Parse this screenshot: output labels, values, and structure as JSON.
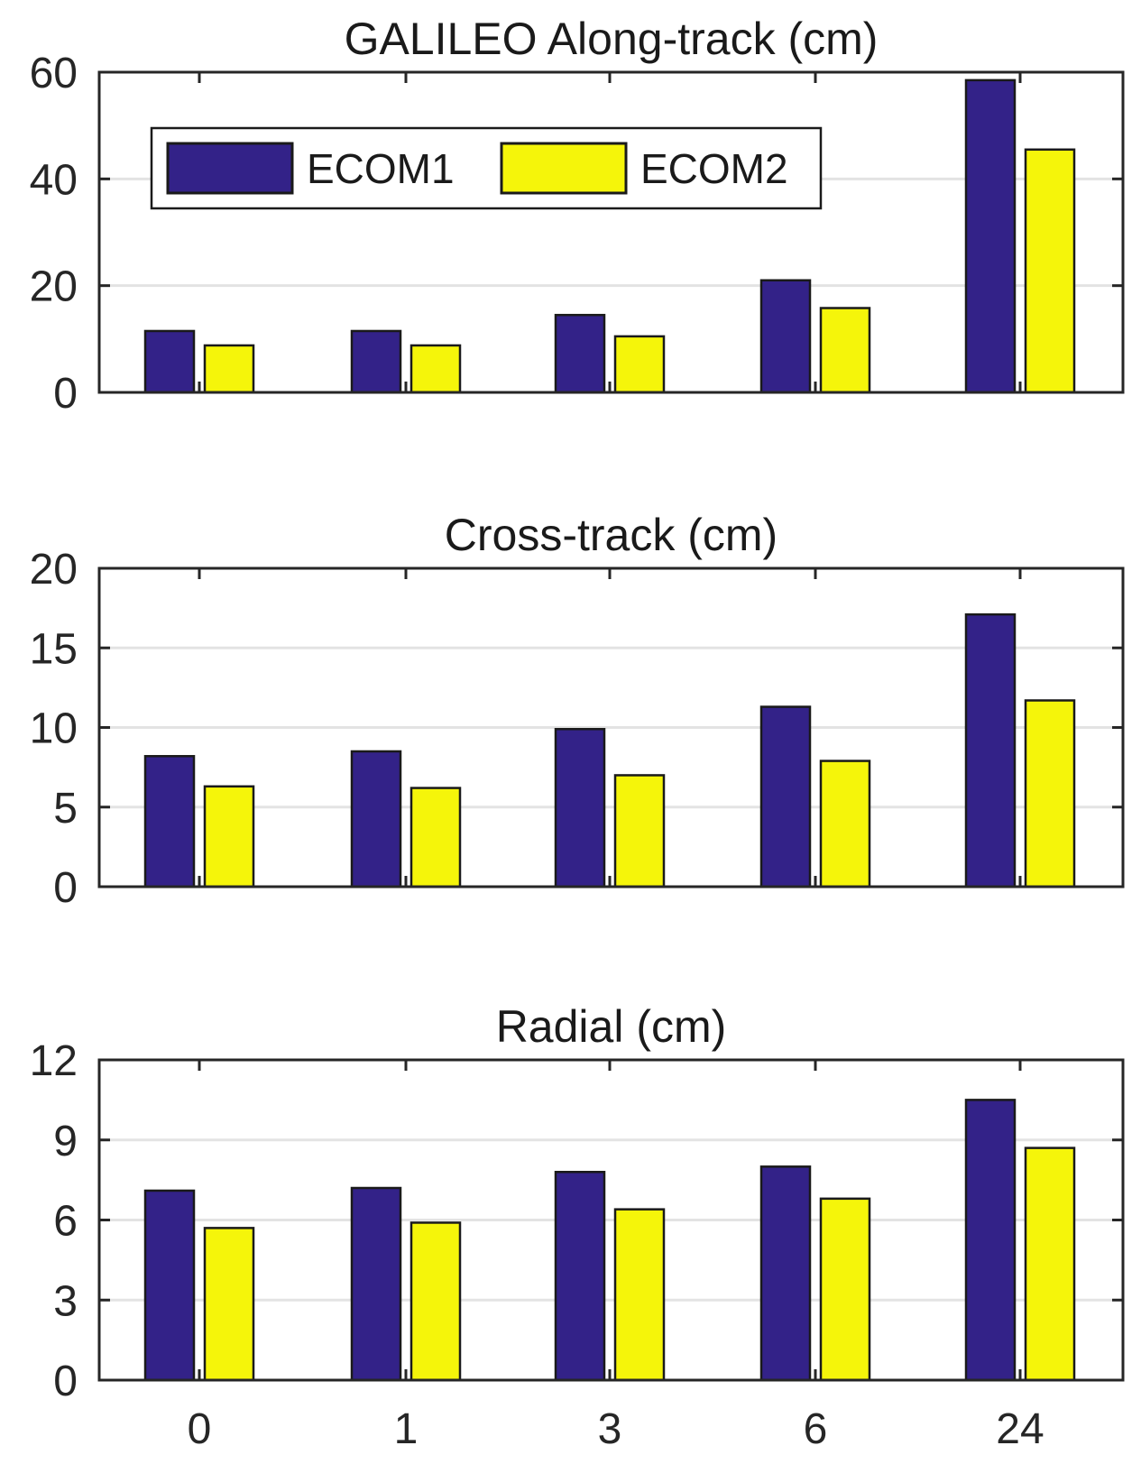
{
  "colors": {
    "ECOM1": "#332288",
    "ECOM2": "#f5f50a",
    "grid": "#e3e3e3",
    "axis": "#262626"
  },
  "chart_data": [
    {
      "type": "bar",
      "title": "GALILEO Along-track (cm)",
      "xlabel": "",
      "ylabel": "",
      "categories": [
        "0",
        "1",
        "3",
        "6",
        "24"
      ],
      "series": [
        {
          "name": "ECOM1",
          "values": [
            11.5,
            11.5,
            14.5,
            21,
            58.5
          ]
        },
        {
          "name": "ECOM2",
          "values": [
            8.8,
            8.8,
            10.5,
            15.8,
            45.5
          ]
        }
      ],
      "ylim": [
        0,
        60
      ],
      "yticks": [
        0,
        20,
        40,
        60
      ],
      "grid": true,
      "legend": {
        "position": "top-left",
        "entries": [
          "ECOM1",
          "ECOM2"
        ]
      },
      "show_xticklabels": false
    },
    {
      "type": "bar",
      "title": "Cross-track (cm)",
      "xlabel": "",
      "ylabel": "",
      "categories": [
        "0",
        "1",
        "3",
        "6",
        "24"
      ],
      "series": [
        {
          "name": "ECOM1",
          "values": [
            8.2,
            8.5,
            9.9,
            11.3,
            17.1
          ]
        },
        {
          "name": "ECOM2",
          "values": [
            6.3,
            6.2,
            7.0,
            7.9,
            11.7
          ]
        }
      ],
      "ylim": [
        0,
        20
      ],
      "yticks": [
        0,
        5,
        10,
        15,
        20
      ],
      "grid": true,
      "legend": null,
      "show_xticklabels": false
    },
    {
      "type": "bar",
      "title": "Radial (cm)",
      "xlabel": "",
      "ylabel": "",
      "categories": [
        "0",
        "1",
        "3",
        "6",
        "24"
      ],
      "series": [
        {
          "name": "ECOM1",
          "values": [
            7.1,
            7.2,
            7.8,
            8.0,
            10.5
          ]
        },
        {
          "name": "ECOM2",
          "values": [
            5.7,
            5.9,
            6.4,
            6.8,
            8.7
          ]
        }
      ],
      "ylim": [
        0,
        12
      ],
      "yticks": [
        0,
        3,
        6,
        9,
        12
      ],
      "grid": true,
      "legend": null,
      "show_xticklabels": true
    }
  ]
}
